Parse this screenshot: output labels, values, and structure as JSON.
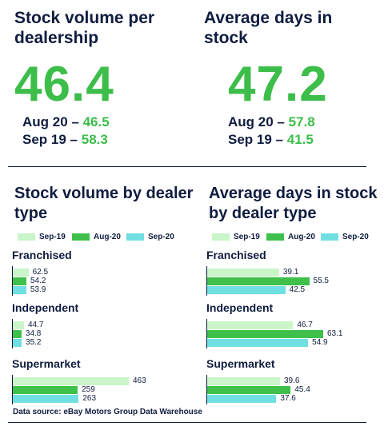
{
  "kpis": [
    {
      "title": "Stock volume per dealership",
      "value": 46.4,
      "comparisons": [
        {
          "label": "Aug 20 –",
          "value": 46.5
        },
        {
          "label": "Sep 19 –",
          "value": 58.3
        }
      ]
    },
    {
      "title": "Average days in stock",
      "value": 47.2,
      "comparisons": [
        {
          "label": "Aug 20 –",
          "value": 57.8
        },
        {
          "label": "Sep 19 –",
          "value": 41.5
        }
      ]
    }
  ],
  "chart_data": [
    {
      "type": "bar",
      "orientation": "horizontal",
      "title": "Stock volume by dealer type",
      "categories": [
        "Franchised",
        "Independent",
        "Supermarket"
      ],
      "series": [
        {
          "name": "Sep-19",
          "color": "#c9f5c9",
          "values": [
            62.5,
            44.7,
            463
          ]
        },
        {
          "name": "Aug-20",
          "color": "#3fc04b",
          "values": [
            54.2,
            34.8,
            259
          ]
        },
        {
          "name": "Sep-20",
          "color": "#70dfe2",
          "values": [
            53.9,
            35.2,
            263
          ]
        }
      ]
    },
    {
      "type": "bar",
      "orientation": "horizontal",
      "title": "Average days in stock by dealer type",
      "categories": [
        "Franchised",
        "Independent",
        "Supermarket"
      ],
      "series": [
        {
          "name": "Sep-19",
          "color": "#c9f5c9",
          "values": [
            39.1,
            46.7,
            39.6
          ]
        },
        {
          "name": "Aug-20",
          "color": "#3fc04b",
          "values": [
            55.5,
            63.1,
            45.4
          ]
        },
        {
          "name": "Sep-20",
          "color": "#70dfe2",
          "values": [
            42.5,
            54.9,
            37.6
          ]
        }
      ]
    }
  ],
  "source": "Data source: eBay Motors Group Data Warehouse"
}
